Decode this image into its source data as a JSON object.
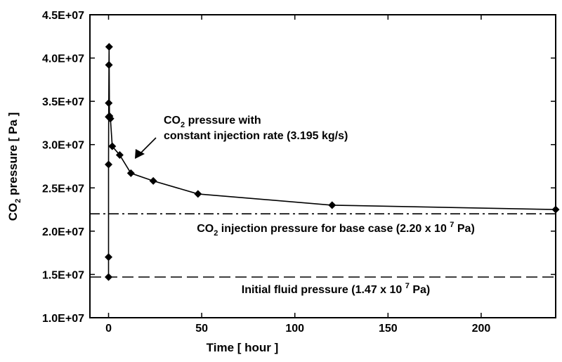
{
  "chart_data": {
    "type": "line",
    "xlabel": "Time [ hour ]",
    "ylabel": {
      "pre": "CO",
      "sub": "2",
      "post": " pressure [ Pa ]"
    },
    "xlim": [
      -10,
      240
    ],
    "ylim": [
      10000000,
      45000000
    ],
    "x_ticks": [
      0,
      50,
      100,
      150,
      200
    ],
    "x_tick_labels": [
      "0",
      "50",
      "100",
      "150",
      "200"
    ],
    "y_ticks": [
      10000000,
      15000000,
      20000000,
      25000000,
      30000000,
      35000000,
      40000000,
      45000000
    ],
    "y_tick_labels": [
      "1.0E+07",
      "1.5E+07",
      "2.0E+07",
      "2.5E+07",
      "3.0E+07",
      "3.5E+07",
      "4.0E+07",
      "4.5E+07"
    ],
    "grid": false,
    "series": [
      {
        "style": "solid-line-diamond-markers",
        "color": "#000000",
        "x": [
          0,
          0,
          0,
          0.05,
          0.1,
          0.2,
          0.3,
          0.5,
          1,
          2,
          6,
          12,
          24,
          48,
          120,
          240
        ],
        "y": [
          14700000,
          17000000,
          27700000,
          33200000,
          34800000,
          39200000,
          41300000,
          33300000,
          33000000,
          29800000,
          28800000,
          26700000,
          25800000,
          24300000,
          23000000,
          22500000
        ]
      }
    ],
    "reference_lines": [
      {
        "id": "injection",
        "y": 22000000,
        "style": "dash-dot"
      },
      {
        "id": "initial",
        "y": 14700000,
        "style": "dashed"
      }
    ],
    "annotations": {
      "curve_label": {
        "line1": {
          "pre": "CO",
          "sub": "2",
          "post": " pressure with"
        },
        "line2": "constant injection rate (3.195 kg/s)"
      },
      "injection_label": {
        "pre": "CO",
        "sub": "2",
        "mid": " injection pressure for base case (2.20 x 10 ",
        "sup": "7",
        "post": " Pa)"
      },
      "initial_label": {
        "pre": "Initial fluid pressure (1.47 x 10 ",
        "sup": "7",
        "post": " Pa)"
      }
    }
  }
}
